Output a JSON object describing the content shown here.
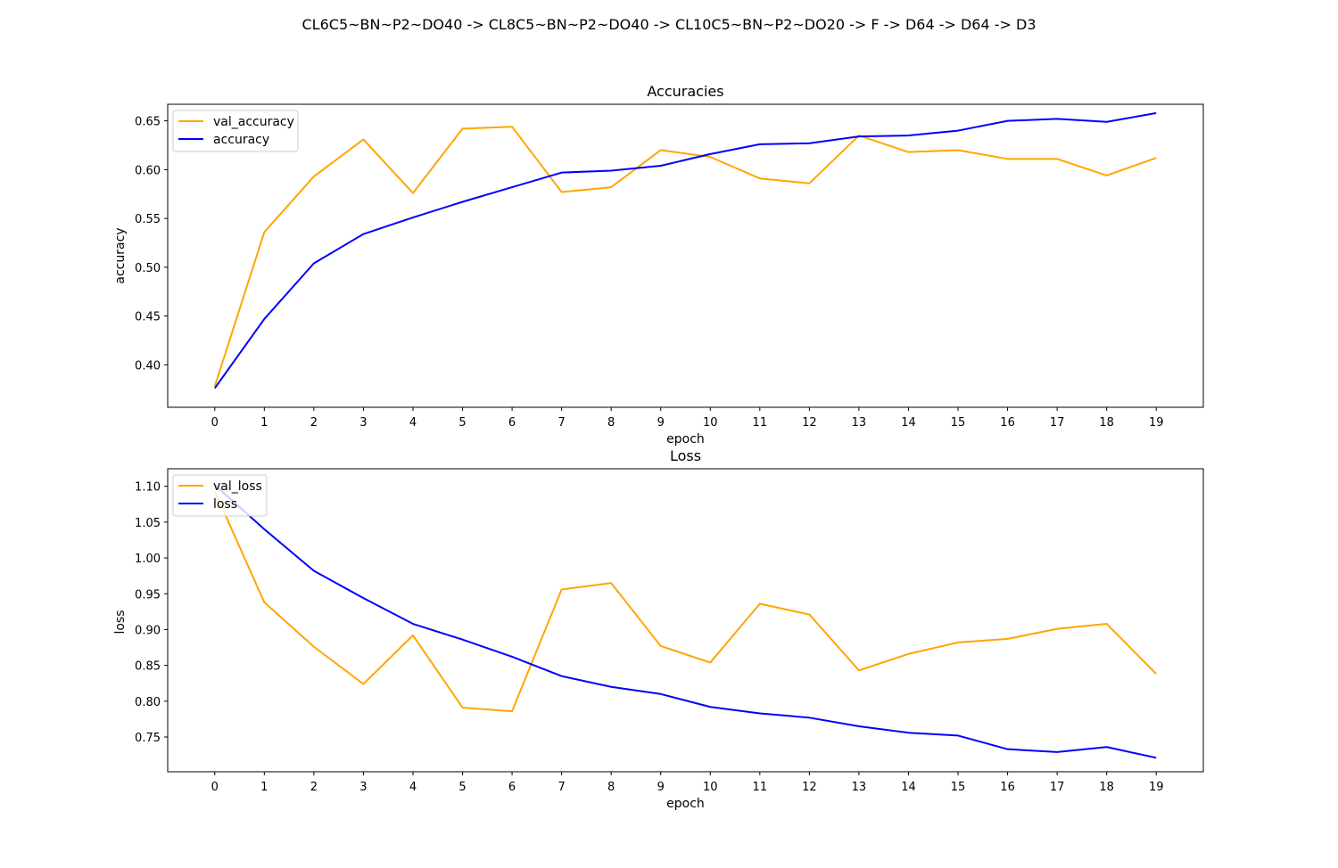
{
  "suptitle": "CL6C5~BN~P2~DO40 -> CL8C5~BN~P2~DO40 -> CL10C5~BN~P2~DO20 -> F -> D64 -> D64 -> D3",
  "colors": {
    "val": "#ffa500",
    "train": "#0000ff",
    "axis": "#000000",
    "background": "#ffffff"
  },
  "chart_data": [
    {
      "type": "line",
      "title": "Accuracies",
      "xlabel": "epoch",
      "ylabel": "accuracy",
      "x": [
        0,
        1,
        2,
        3,
        4,
        5,
        6,
        7,
        8,
        9,
        10,
        11,
        12,
        13,
        14,
        15,
        16,
        17,
        18,
        19
      ],
      "xticks": [
        "0",
        "1",
        "2",
        "3",
        "4",
        "5",
        "6",
        "7",
        "8",
        "9",
        "10",
        "11",
        "12",
        "13",
        "14",
        "15",
        "16",
        "17",
        "18",
        "19"
      ],
      "xlim": [
        -0.95,
        19.95
      ],
      "ylim": [
        0.3565,
        0.667
      ],
      "yticks": [
        "0.40",
        "0.45",
        "0.50",
        "0.55",
        "0.60",
        "0.65"
      ],
      "legend_position": "upper-left",
      "series": [
        {
          "name": "val_accuracy",
          "color": "#ffa500",
          "values": [
            0.378,
            0.536,
            0.593,
            0.631,
            0.576,
            0.642,
            0.644,
            0.577,
            0.582,
            0.62,
            0.613,
            0.591,
            0.586,
            0.635,
            0.618,
            0.62,
            0.611,
            0.611,
            0.594,
            0.612
          ]
        },
        {
          "name": "accuracy",
          "color": "#0000ff",
          "values": [
            0.376,
            0.447,
            0.504,
            0.534,
            0.551,
            0.567,
            0.582,
            0.597,
            0.599,
            0.604,
            0.616,
            0.626,
            0.627,
            0.634,
            0.635,
            0.64,
            0.65,
            0.652,
            0.649,
            0.658
          ]
        }
      ]
    },
    {
      "type": "line",
      "title": "Loss",
      "xlabel": "epoch",
      "ylabel": "loss",
      "x": [
        0,
        1,
        2,
        3,
        4,
        5,
        6,
        7,
        8,
        9,
        10,
        11,
        12,
        13,
        14,
        15,
        16,
        17,
        18,
        19
      ],
      "xticks": [
        "0",
        "1",
        "2",
        "3",
        "4",
        "5",
        "6",
        "7",
        "8",
        "9",
        "10",
        "11",
        "12",
        "13",
        "14",
        "15",
        "16",
        "17",
        "18",
        "19"
      ],
      "xlim": [
        -0.95,
        19.95
      ],
      "ylim": [
        0.7015,
        1.1245
      ],
      "yticks": [
        "0.75",
        "0.80",
        "0.85",
        "0.90",
        "0.95",
        "1.00",
        "1.05",
        "1.10"
      ],
      "legend_position": "upper-left",
      "series": [
        {
          "name": "val_loss",
          "color": "#ffa500",
          "values": [
            1.093,
            0.938,
            0.876,
            0.824,
            0.892,
            0.791,
            0.786,
            0.956,
            0.965,
            0.877,
            0.854,
            0.936,
            0.921,
            0.843,
            0.866,
            0.882,
            0.887,
            0.901,
            0.908,
            0.838
          ]
        },
        {
          "name": "loss",
          "color": "#0000ff",
          "values": [
            1.102,
            1.04,
            0.982,
            0.944,
            0.908,
            0.886,
            0.862,
            0.835,
            0.82,
            0.81,
            0.792,
            0.783,
            0.777,
            0.765,
            0.756,
            0.752,
            0.733,
            0.729,
            0.736,
            0.721
          ]
        }
      ]
    }
  ]
}
